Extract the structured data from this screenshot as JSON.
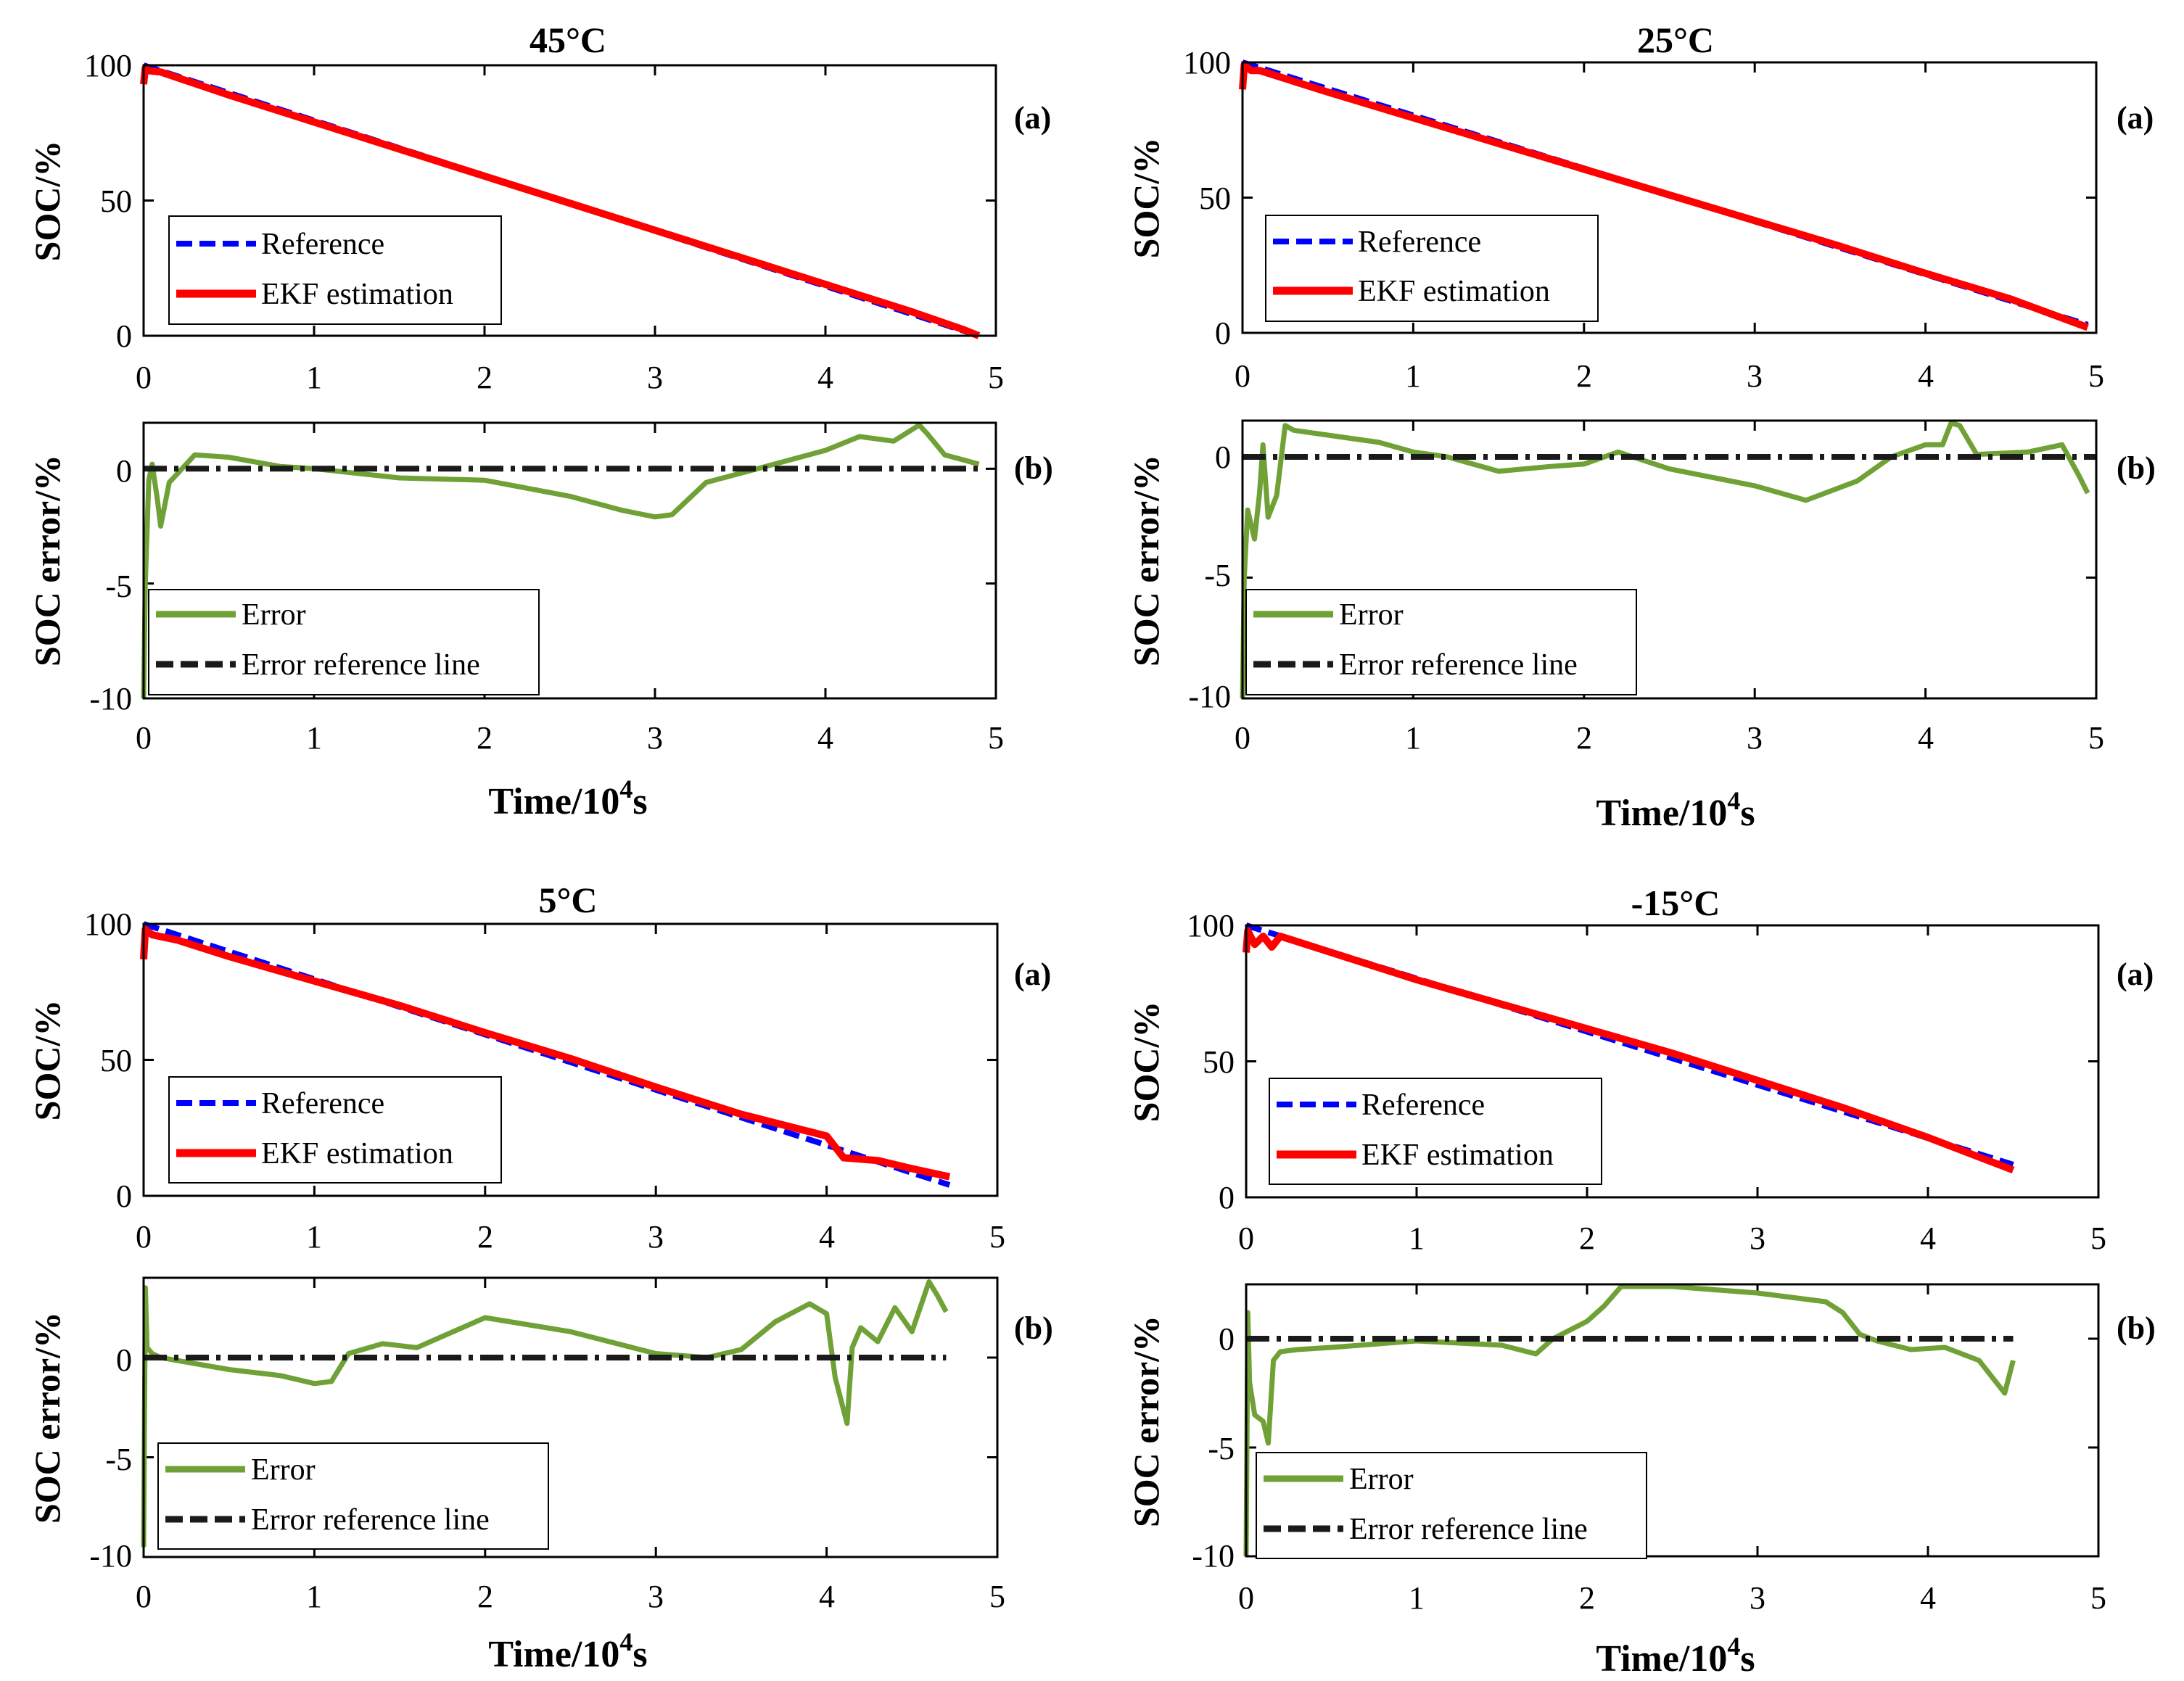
{
  "chart_data": [
    {
      "type": "line",
      "title": "45°C",
      "panel_a": {
        "tag": "(a)",
        "ylabel": "SOC/%",
        "xlim": [
          0,
          5
        ],
        "ylim": [
          0,
          100
        ],
        "xticks": [
          "0",
          "1",
          "2",
          "3",
          "4",
          "5"
        ],
        "yticks": [
          "0",
          "50",
          "100"
        ],
        "legend": [
          "Reference",
          "EKF estimation"
        ],
        "series": [
          {
            "name": "Reference",
            "color": "#0000ff",
            "style": "dashed",
            "x": [
              0,
              4.9
            ],
            "y": [
              100,
              0
            ]
          },
          {
            "name": "EKF estimation",
            "color": "#ff0000",
            "style": "solid",
            "x": [
              0,
              0.01,
              0.03,
              0.1,
              0.5,
              1,
              1.5,
              2,
              2.5,
              3,
              3.5,
              4,
              4.5,
              4.8,
              4.9
            ],
            "y": [
              93,
              99,
              98,
              97.5,
              89,
              79,
              69,
              59,
              49,
              39,
              29,
              19,
              9,
              2.5,
              0
            ]
          }
        ]
      },
      "panel_b": {
        "tag": "(b)",
        "ylabel": "SOC error/%",
        "xlabel_main": "Time/10",
        "xlabel_sup": "4",
        "xlabel_end": "s",
        "xlim": [
          0,
          5
        ],
        "ylim": [
          -10,
          2
        ],
        "xticks": [
          "0",
          "1",
          "2",
          "3",
          "4",
          "5"
        ],
        "yticks": [
          "0",
          "-5",
          "-10"
        ],
        "legend": [
          "Error",
          "Error reference line"
        ],
        "series": [
          {
            "name": "Error",
            "color": "#6fa136",
            "style": "solid",
            "x": [
              0,
              0.01,
              0.03,
              0.05,
              0.08,
              0.1,
              0.15,
              0.2,
              0.3,
              0.5,
              0.8,
              1,
              1.5,
              2,
              2.5,
              2.8,
              3,
              3.1,
              3.3,
              3.5,
              4,
              4.2,
              4.4,
              4.55,
              4.6,
              4.7,
              4.9
            ],
            "y": [
              -10,
              -5,
              -0.5,
              0.2,
              -1.3,
              -2.5,
              -0.6,
              -0.2,
              0.6,
              0.5,
              0.1,
              0,
              -0.4,
              -0.5,
              -1.2,
              -1.8,
              -2.1,
              -2,
              -0.6,
              -0.2,
              0.8,
              1.4,
              1.2,
              1.9,
              1.5,
              0.6,
              0.2
            ]
          },
          {
            "name": "Error reference line",
            "color": "#1a1a1a",
            "style": "dashdot",
            "x": [
              0,
              4.9
            ],
            "y": [
              0,
              0
            ]
          }
        ]
      }
    },
    {
      "type": "line",
      "title": "25°C",
      "panel_a": {
        "tag": "(a)",
        "ylabel": "SOC/%",
        "xlim": [
          0,
          5
        ],
        "ylim": [
          0,
          100
        ],
        "xticks": [
          "0",
          "1",
          "2",
          "3",
          "4",
          "5"
        ],
        "yticks": [
          "0",
          "50",
          "100"
        ],
        "legend": [
          "Reference",
          "EKF estimation"
        ],
        "series": [
          {
            "name": "Reference",
            "color": "#0000ff",
            "style": "dashed",
            "x": [
              0,
              4.95
            ],
            "y": [
              100,
              3
            ]
          },
          {
            "name": "EKF estimation",
            "color": "#ff0000",
            "style": "solid",
            "x": [
              0,
              0.01,
              0.05,
              0.1,
              0.5,
              1,
              1.5,
              2,
              2.5,
              3,
              3.5,
              4,
              4.5,
              4.95
            ],
            "y": [
              90,
              99,
              97,
              97,
              89,
              79.5,
              70,
              60.5,
              51,
              41.5,
              32,
              22,
              12.5,
              2
            ]
          }
        ]
      },
      "panel_b": {
        "tag": "(b)",
        "ylabel": "SOC error/%",
        "xlabel_main": "Time/10",
        "xlabel_sup": "4",
        "xlabel_end": "s",
        "xlim": [
          0,
          5
        ],
        "ylim": [
          -10,
          1.5
        ],
        "xticks": [
          "0",
          "1",
          "2",
          "3",
          "4",
          "5"
        ],
        "yticks": [
          "0",
          "-5",
          "-10"
        ],
        "legend": [
          "Error",
          "Error reference line"
        ],
        "series": [
          {
            "name": "Error",
            "color": "#6fa136",
            "style": "solid",
            "x": [
              0,
              0.01,
              0.03,
              0.07,
              0.1,
              0.12,
              0.15,
              0.2,
              0.25,
              0.3,
              0.5,
              0.8,
              1,
              1.2,
              1.5,
              1.8,
              2,
              2.2,
              2.5,
              3,
              3.3,
              3.6,
              3.8,
              4,
              4.1,
              4.15,
              4.2,
              4.3,
              4.6,
              4.8,
              4.9,
              4.95
            ],
            "y": [
              -10,
              -5,
              -2.2,
              -3.4,
              -1.5,
              0.5,
              -2.5,
              -1.6,
              1.3,
              1.1,
              0.9,
              0.6,
              0.2,
              0,
              -0.6,
              -0.4,
              -0.3,
              0.2,
              -0.5,
              -1.2,
              -1.8,
              -1,
              0,
              0.5,
              0.5,
              1.4,
              1.3,
              0.1,
              0.2,
              0.5,
              -0.8,
              -1.5
            ]
          },
          {
            "name": "Error reference line",
            "color": "#1a1a1a",
            "style": "dashdot",
            "x": [
              0,
              5
            ],
            "y": [
              0,
              0
            ]
          }
        ]
      }
    },
    {
      "type": "line",
      "title": "5°C",
      "panel_a": {
        "tag": "(a)",
        "ylabel": "SOC/%",
        "xlim": [
          0,
          5
        ],
        "ylim": [
          0,
          100
        ],
        "xticks": [
          "0",
          "1",
          "2",
          "3",
          "4",
          "5"
        ],
        "yticks": [
          "0",
          "50",
          "100"
        ],
        "legend": [
          "Reference",
          "EKF estimation"
        ],
        "series": [
          {
            "name": "Reference",
            "color": "#0000ff",
            "style": "dashed",
            "x": [
              0,
              4.72
            ],
            "y": [
              100,
              4
            ]
          },
          {
            "name": "EKF estimation",
            "color": "#ff0000",
            "style": "solid",
            "x": [
              0,
              0.01,
              0.05,
              0.2,
              0.5,
              1,
              1.5,
              2,
              2.5,
              3,
              3.5,
              4,
              4.1,
              4.3,
              4.5,
              4.72
            ],
            "y": [
              87,
              98,
              96,
              94,
              88,
              79,
              70,
              60,
              50.5,
              40,
              30,
              22,
              14,
              13,
              10,
              7
            ]
          }
        ]
      },
      "panel_b": {
        "tag": "(b)",
        "ylabel": "SOC error/%",
        "xlabel_main": "Time/10",
        "xlabel_sup": "4",
        "xlabel_end": "s",
        "xlim": [
          0,
          5
        ],
        "ylim": [
          -10,
          4
        ],
        "xticks": [
          "0",
          "1",
          "2",
          "3",
          "4",
          "5"
        ],
        "yticks": [
          "0",
          "-5",
          "-10"
        ],
        "legend": [
          "Error",
          "Error reference line"
        ],
        "series": [
          {
            "name": "Error",
            "color": "#6fa136",
            "style": "solid",
            "x": [
              0,
              0.01,
              0.02,
              0.05,
              0.1,
              0.3,
              0.5,
              0.8,
              1.0,
              1.1,
              1.2,
              1.4,
              1.6,
              2.0,
              2.5,
              3.0,
              3.3,
              3.5,
              3.7,
              3.9,
              4.0,
              4.05,
              4.12,
              4.15,
              4.2,
              4.3,
              4.4,
              4.5,
              4.6,
              4.65,
              4.7
            ],
            "y": [
              -9.5,
              3.5,
              0.5,
              0.2,
              0,
              -0.3,
              -0.6,
              -0.9,
              -1.3,
              -1.2,
              0.2,
              0.7,
              0.5,
              2,
              1.3,
              0.2,
              0,
              0.4,
              1.8,
              2.7,
              2.2,
              -1,
              -3.3,
              0.5,
              1.5,
              0.8,
              2.5,
              1.3,
              3.8,
              3.1,
              2.3
            ]
          },
          {
            "name": "Error reference line",
            "color": "#1a1a1a",
            "style": "dashdot",
            "x": [
              0,
              4.7
            ],
            "y": [
              0,
              0
            ]
          }
        ]
      }
    },
    {
      "type": "line",
      "title": "-15°C",
      "panel_a": {
        "tag": "(a)",
        "ylabel": "SOC/%",
        "xlim": [
          0,
          5
        ],
        "ylim": [
          0,
          100
        ],
        "xticks": [
          "0",
          "1",
          "2",
          "3",
          "4",
          "5"
        ],
        "yticks": [
          "0",
          "50",
          "100"
        ],
        "legend": [
          "Reference",
          "EKF estimation"
        ],
        "series": [
          {
            "name": "Reference",
            "color": "#0000ff",
            "style": "dashed",
            "x": [
              0,
              4.5
            ],
            "y": [
              100,
              12
            ]
          },
          {
            "name": "EKF estimation",
            "color": "#ff0000",
            "style": "solid",
            "x": [
              0,
              0.01,
              0.05,
              0.1,
              0.15,
              0.2,
              0.5,
              1,
              1.5,
              2,
              2.5,
              3,
              3.5,
              4,
              4.5
            ],
            "y": [
              90,
              98,
              93,
              96,
              92,
              96,
              90,
              80,
              71,
              62,
              53,
              43,
              33,
              22,
              10
            ]
          }
        ]
      },
      "panel_b": {
        "tag": "(b)",
        "ylabel": "SOC error/%",
        "xlabel_main": "Time/10",
        "xlabel_sup": "4",
        "xlabel_end": "s",
        "xlim": [
          0,
          5
        ],
        "ylim": [
          -10,
          2.5
        ],
        "xticks": [
          "0",
          "1",
          "2",
          "3",
          "4",
          "5"
        ],
        "yticks": [
          "0",
          "-5",
          "-10"
        ],
        "legend": [
          "Error",
          "Error reference line"
        ],
        "series": [
          {
            "name": "Error",
            "color": "#6fa136",
            "style": "solid",
            "x": [
              0,
              0.01,
              0.02,
              0.05,
              0.1,
              0.13,
              0.16,
              0.2,
              0.3,
              0.5,
              1,
              1.5,
              1.7,
              1.8,
              1.9,
              2.0,
              2.1,
              2.2,
              2.5,
              3,
              3.4,
              3.5,
              3.6,
              3.7,
              3.9,
              4.1,
              4.3,
              4.4,
              4.45,
              4.5
            ],
            "y": [
              -10,
              1.2,
              -2,
              -3.5,
              -3.8,
              -4.8,
              -1,
              -0.6,
              -0.5,
              -0.4,
              -0.1,
              -0.3,
              -0.7,
              0,
              0.4,
              0.8,
              1.5,
              2.4,
              2.4,
              2.1,
              1.7,
              1.2,
              0.2,
              -0.1,
              -0.5,
              -0.4,
              -1,
              -2,
              -2.5,
              -1
            ]
          },
          {
            "name": "Error reference line",
            "color": "#1a1a1a",
            "style": "dashdot",
            "x": [
              0,
              4.5
            ],
            "y": [
              0,
              0
            ]
          }
        ]
      }
    }
  ]
}
